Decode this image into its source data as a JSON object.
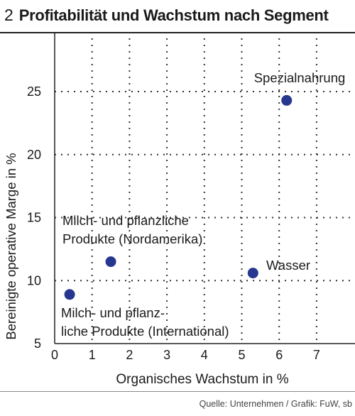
{
  "figure": {
    "number": "2",
    "title": "Profitabilität und Wachstum nach Segment",
    "source": "Quelle: Unternehmen / Grafik: FuW, sb"
  },
  "colors": {
    "dot": "#27368f",
    "axis": "#222222",
    "grid": "#333333"
  },
  "chart_data": {
    "type": "scatter",
    "title": "",
    "xlabel": "Organisches Wachstum in %",
    "ylabel": "Bereinigte operative Marge in %",
    "xlim": [
      0,
      8
    ],
    "ylim": [
      5,
      29
    ],
    "x_ticks": [
      0,
      1,
      2,
      3,
      4,
      5,
      6,
      7
    ],
    "y_ticks": [
      5,
      10,
      15,
      20,
      25
    ],
    "grid": "dotted",
    "legend": "none",
    "points": [
      {
        "label_lines": [
          "Spezialnahrung"
        ],
        "x": 6.2,
        "y": 24.3
      },
      {
        "label_lines": [
          "Milch- und pflanzliche",
          "Produkte (Nordamerika)"
        ],
        "x": 1.5,
        "y": 11.5
      },
      {
        "label_lines": [
          "Wasser"
        ],
        "x": 5.3,
        "y": 10.6
      },
      {
        "label_lines": [
          "Milch- und pflanz-",
          "liche Produkte (International)"
        ],
        "x": 0.4,
        "y": 8.9
      }
    ]
  }
}
